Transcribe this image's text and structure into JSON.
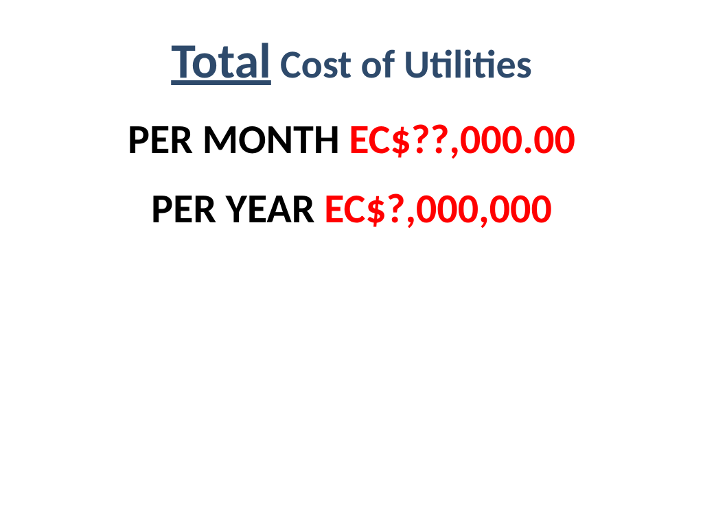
{
  "title": {
    "word1": "Total",
    "rest": " Cost of Utilities"
  },
  "line1": {
    "label": "PER MONTH ",
    "amount": "EC$??,000.00"
  },
  "line2": {
    "label": "PER YEAR ",
    "amount": "EC$?,000,000"
  },
  "colors": {
    "title": "#2e4a6b",
    "label": "#000000",
    "amount": "#ff0000",
    "background": "#ffffff"
  }
}
